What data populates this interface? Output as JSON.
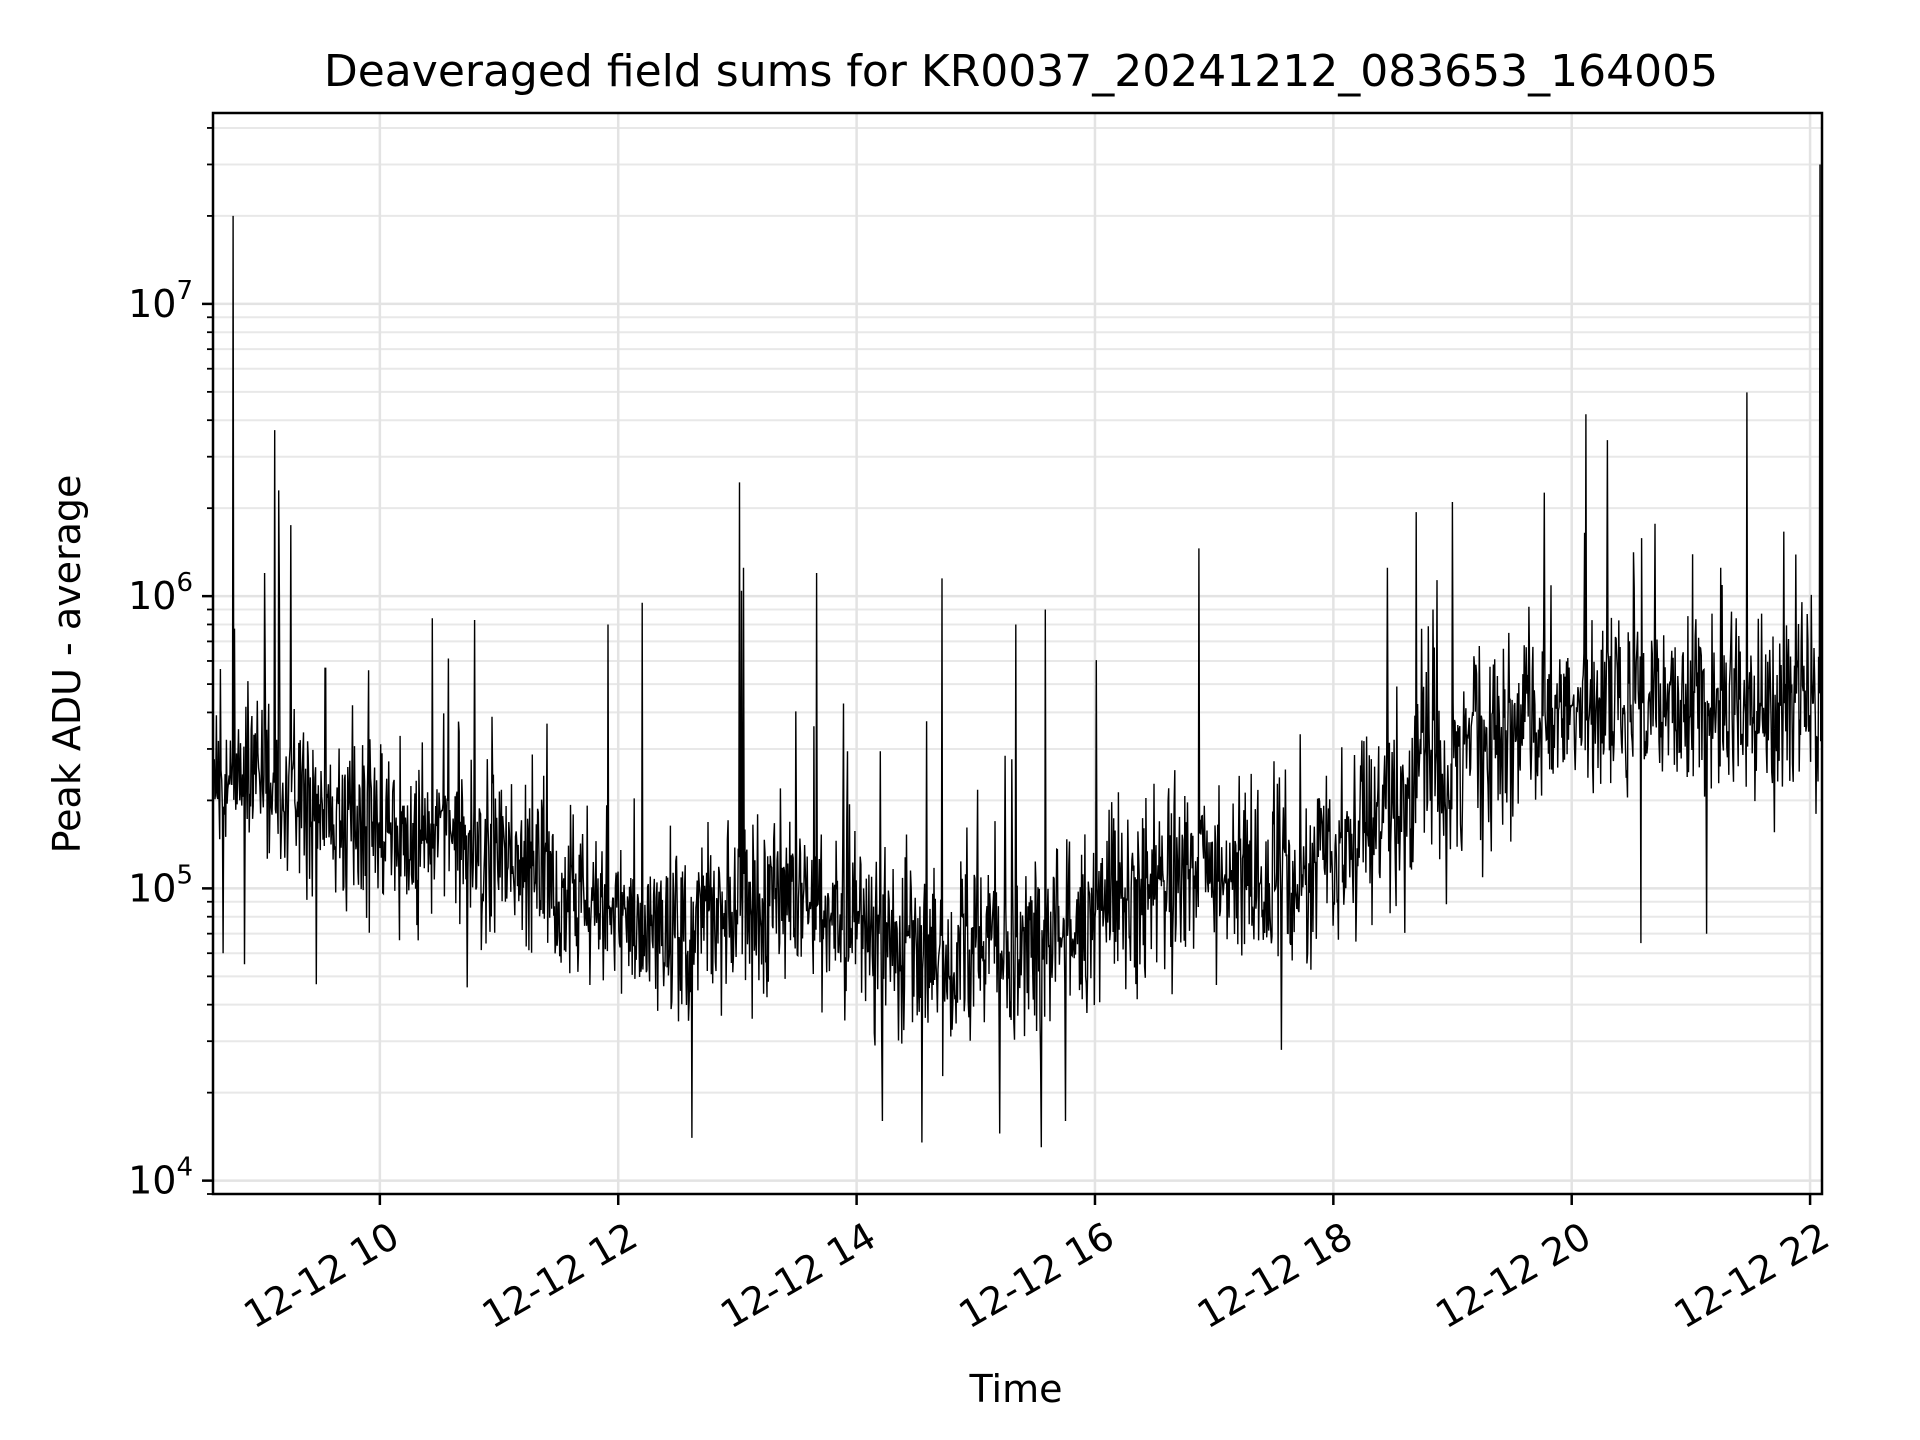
{
  "chart_data": {
    "type": "line",
    "title": "Deaveraged field sums for KR0037_20241212_083653_164005",
    "xlabel": "Time",
    "ylabel": "Peak ADU - average",
    "x_type": "datetime",
    "xlim": [
      "2024-12-12T08:36",
      "2024-12-12T22:06"
    ],
    "ylim": [
      9000,
      45000000
    ],
    "y_scale": "log",
    "grid": "on (major and minor)",
    "line_color": "#000000",
    "x_ticks": [
      {
        "value": "2024-12-12T10:00",
        "label": "12-12 10"
      },
      {
        "value": "2024-12-12T12:00",
        "label": "12-12 12"
      },
      {
        "value": "2024-12-12T14:00",
        "label": "12-12 14"
      },
      {
        "value": "2024-12-12T16:00",
        "label": "12-12 16"
      },
      {
        "value": "2024-12-12T18:00",
        "label": "12-12 18"
      },
      {
        "value": "2024-12-12T20:00",
        "label": "12-12 20"
      },
      {
        "value": "2024-12-12T22:00",
        "label": "12-12 22"
      }
    ],
    "y_ticks": [
      {
        "value": 10000,
        "base": "10",
        "exp": "4"
      },
      {
        "value": 100000,
        "base": "10",
        "exp": "5"
      },
      {
        "value": 1000000,
        "base": "10",
        "exp": "6"
      },
      {
        "value": 10000000,
        "base": "10",
        "exp": "7"
      }
    ],
    "series": [
      {
        "x": [
          "2024-12-12T08:36",
          "2024-12-12T08:48",
          "2024-12-12T09:00",
          "2024-12-12T09:12",
          "2024-12-12T09:24",
          "2024-12-12T09:36",
          "2024-12-12T09:48",
          "2024-12-12T10:00",
          "2024-12-12T10:12",
          "2024-12-12T10:24",
          "2024-12-12T10:36",
          "2024-12-12T10:48",
          "2024-12-12T11:00",
          "2024-12-12T11:12",
          "2024-12-12T11:24",
          "2024-12-12T11:36",
          "2024-12-12T11:48",
          "2024-12-12T12:00",
          "2024-12-12T12:12",
          "2024-12-12T12:24",
          "2024-12-12T12:36",
          "2024-12-12T12:48",
          "2024-12-12T13:00",
          "2024-12-12T13:12",
          "2024-12-12T13:24",
          "2024-12-12T13:36",
          "2024-12-12T13:48",
          "2024-12-12T14:00",
          "2024-12-12T14:12",
          "2024-12-12T14:24",
          "2024-12-12T14:36",
          "2024-12-12T14:48",
          "2024-12-12T15:00",
          "2024-12-12T15:12",
          "2024-12-12T15:24",
          "2024-12-12T15:36",
          "2024-12-12T15:48",
          "2024-12-12T16:00",
          "2024-12-12T16:12",
          "2024-12-12T16:24",
          "2024-12-12T16:36",
          "2024-12-12T16:48",
          "2024-12-12T17:00",
          "2024-12-12T17:12",
          "2024-12-12T17:24",
          "2024-12-12T17:36",
          "2024-12-12T17:48",
          "2024-12-12T18:00",
          "2024-12-12T18:12",
          "2024-12-12T18:24",
          "2024-12-12T18:36",
          "2024-12-12T18:48",
          "2024-12-12T19:00",
          "2024-12-12T19:12",
          "2024-12-12T19:24",
          "2024-12-12T19:36",
          "2024-12-12T19:48",
          "2024-12-12T20:00",
          "2024-12-12T20:12",
          "2024-12-12T20:24",
          "2024-12-12T20:36",
          "2024-12-12T20:48",
          "2024-12-12T21:00",
          "2024-12-12T21:12",
          "2024-12-12T21:24",
          "2024-12-12T21:36",
          "2024-12-12T21:48",
          "2024-12-12T22:00",
          "2024-12-12T22:06"
        ],
        "median_values": [
          250000,
          230000,
          220000,
          200000,
          190000,
          180000,
          175000,
          170000,
          160000,
          155000,
          150000,
          140000,
          130000,
          120000,
          110000,
          100000,
          90000,
          80000,
          75000,
          72000,
          75000,
          80000,
          85000,
          90000,
          95000,
          92000,
          85000,
          75000,
          68000,
          62000,
          60000,
          60000,
          58000,
          58000,
          60000,
          65000,
          75000,
          85000,
          95000,
          100000,
          110000,
          120000,
          115000,
          110000,
          105000,
          110000,
          115000,
          130000,
          150000,
          175000,
          200000,
          230000,
          270000,
          300000,
          330000,
          360000,
          390000,
          410000,
          420000,
          430000,
          440000,
          440000,
          430000,
          420000,
          420000,
          410000,
          400000,
          390000,
          380000
        ],
        "spikes": [
          {
            "x": "2024-12-12T08:46",
            "y": 20000000
          },
          {
            "x": "2024-12-12T09:07",
            "y": 3700000
          },
          {
            "x": "2024-12-12T09:09",
            "y": 2300000
          },
          {
            "x": "2024-12-12T09:15",
            "y": 1750000
          },
          {
            "x": "2024-12-12T09:02",
            "y": 1200000
          },
          {
            "x": "2024-12-12T11:55",
            "y": 800000
          },
          {
            "x": "2024-12-12T12:12",
            "y": 950000
          },
          {
            "x": "2024-12-12T13:01",
            "y": 2450000
          },
          {
            "x": "2024-12-12T13:03",
            "y": 1250000
          },
          {
            "x": "2024-12-12T13:40",
            "y": 1200000
          },
          {
            "x": "2024-12-12T14:43",
            "y": 1150000
          },
          {
            "x": "2024-12-12T15:20",
            "y": 800000
          },
          {
            "x": "2024-12-12T15:35",
            "y": 900000
          },
          {
            "x": "2024-12-12T19:00",
            "y": 2100000
          },
          {
            "x": "2024-12-12T18:50",
            "y": 900000
          },
          {
            "x": "2024-12-12T21:15",
            "y": 1250000
          },
          {
            "x": "2024-12-12T22:05",
            "y": 30000000
          }
        ],
        "dips": [
          {
            "x": "2024-12-12T08:41",
            "y": 60000
          },
          {
            "x": "2024-12-12T08:52",
            "y": 55000
          },
          {
            "x": "2024-12-12T09:28",
            "y": 47000
          },
          {
            "x": "2024-12-12T12:37",
            "y": 14000
          },
          {
            "x": "2024-12-12T14:13",
            "y": 16000
          },
          {
            "x": "2024-12-12T14:33",
            "y": 13500
          },
          {
            "x": "2024-12-12T15:12",
            "y": 14500
          },
          {
            "x": "2024-12-12T15:33",
            "y": 13000
          },
          {
            "x": "2024-12-12T15:45",
            "y": 16000
          },
          {
            "x": "2024-12-12T17:34",
            "y": 28000
          },
          {
            "x": "2024-12-12T20:35",
            "y": 65000
          },
          {
            "x": "2024-12-12T21:08",
            "y": 70000
          }
        ]
      }
    ]
  }
}
